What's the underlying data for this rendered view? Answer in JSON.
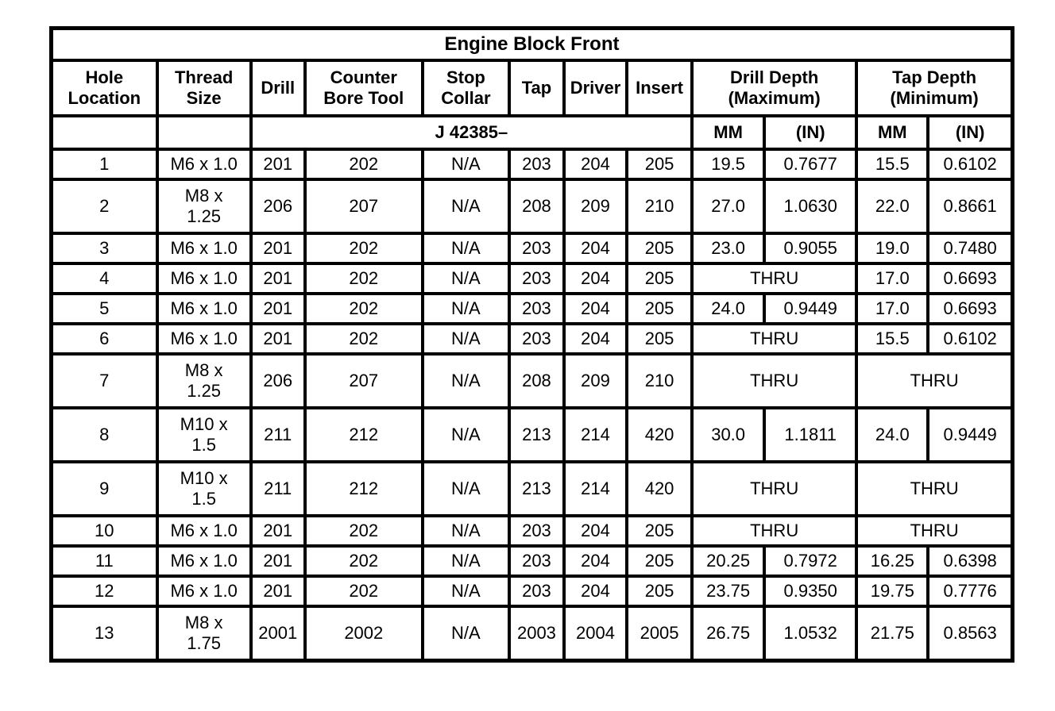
{
  "page": {
    "background_color": "#ffffff",
    "text_color": "#000000",
    "border_color": "#000000"
  },
  "table": {
    "title": "Engine Block Front",
    "header": {
      "hole_location": "Hole\nLocation",
      "thread_size": "Thread\nSize",
      "drill": "Drill",
      "counter_bore_tool": "Counter\nBore Tool",
      "stop_collar": "Stop\nCollar",
      "tap": "Tap",
      "driver": "Driver",
      "insert": "Insert",
      "drill_depth": "Drill Depth\n(Maximum)",
      "tap_depth": "Tap Depth\n(Minimum)"
    },
    "subheader": {
      "tool_prefix": "J 42385–",
      "drill_mm": "MM",
      "drill_in": "(IN)",
      "tap_mm": "MM",
      "tap_in": "(IN)"
    },
    "thru_label": "THRU",
    "rows": [
      {
        "hole": "1",
        "thread": "M6 x 1.0",
        "drill": "201",
        "counter_bore": "202",
        "stop_collar": "N/A",
        "tap": "203",
        "driver": "204",
        "insert": "205",
        "drill_depth": {
          "mm": "19.5",
          "in": "0.7677"
        },
        "tap_depth": {
          "mm": "15.5",
          "in": "0.6102"
        }
      },
      {
        "hole": "2",
        "thread": "M8 x\n1.25",
        "drill": "206",
        "counter_bore": "207",
        "stop_collar": "N/A",
        "tap": "208",
        "driver": "209",
        "insert": "210",
        "drill_depth": {
          "mm": "27.0",
          "in": "1.0630"
        },
        "tap_depth": {
          "mm": "22.0",
          "in": "0.8661"
        }
      },
      {
        "hole": "3",
        "thread": "M6 x 1.0",
        "drill": "201",
        "counter_bore": "202",
        "stop_collar": "N/A",
        "tap": "203",
        "driver": "204",
        "insert": "205",
        "drill_depth": {
          "mm": "23.0",
          "in": "0.9055"
        },
        "tap_depth": {
          "mm": "19.0",
          "in": "0.7480"
        }
      },
      {
        "hole": "4",
        "thread": "M6 x 1.0",
        "drill": "201",
        "counter_bore": "202",
        "stop_collar": "N/A",
        "tap": "203",
        "driver": "204",
        "insert": "205",
        "drill_depth": "THRU",
        "tap_depth": {
          "mm": "17.0",
          "in": "0.6693"
        }
      },
      {
        "hole": "5",
        "thread": "M6 x 1.0",
        "drill": "201",
        "counter_bore": "202",
        "stop_collar": "N/A",
        "tap": "203",
        "driver": "204",
        "insert": "205",
        "drill_depth": {
          "mm": "24.0",
          "in": "0.9449"
        },
        "tap_depth": {
          "mm": "17.0",
          "in": "0.6693"
        }
      },
      {
        "hole": "6",
        "thread": "M6 x 1.0",
        "drill": "201",
        "counter_bore": "202",
        "stop_collar": "N/A",
        "tap": "203",
        "driver": "204",
        "insert": "205",
        "drill_depth": "THRU",
        "tap_depth": {
          "mm": "15.5",
          "in": "0.6102"
        }
      },
      {
        "hole": "7",
        "thread": "M8 x\n1.25",
        "drill": "206",
        "counter_bore": "207",
        "stop_collar": "N/A",
        "tap": "208",
        "driver": "209",
        "insert": "210",
        "drill_depth": "THRU",
        "tap_depth": "THRU"
      },
      {
        "hole": "8",
        "thread": "M10 x\n1.5",
        "drill": "211",
        "counter_bore": "212",
        "stop_collar": "N/A",
        "tap": "213",
        "driver": "214",
        "insert": "420",
        "drill_depth": {
          "mm": "30.0",
          "in": "1.1811"
        },
        "tap_depth": {
          "mm": "24.0",
          "in": "0.9449"
        }
      },
      {
        "hole": "9",
        "thread": "M10 x\n1.5",
        "drill": "211",
        "counter_bore": "212",
        "stop_collar": "N/A",
        "tap": "213",
        "driver": "214",
        "insert": "420",
        "drill_depth": "THRU",
        "tap_depth": "THRU"
      },
      {
        "hole": "10",
        "thread": "M6 x 1.0",
        "drill": "201",
        "counter_bore": "202",
        "stop_collar": "N/A",
        "tap": "203",
        "driver": "204",
        "insert": "205",
        "drill_depth": "THRU",
        "tap_depth": "THRU"
      },
      {
        "hole": "11",
        "thread": "M6 x 1.0",
        "drill": "201",
        "counter_bore": "202",
        "stop_collar": "N/A",
        "tap": "203",
        "driver": "204",
        "insert": "205",
        "drill_depth": {
          "mm": "20.25",
          "in": "0.7972"
        },
        "tap_depth": {
          "mm": "16.25",
          "in": "0.6398"
        }
      },
      {
        "hole": "12",
        "thread": "M6 x 1.0",
        "drill": "201",
        "counter_bore": "202",
        "stop_collar": "N/A",
        "tap": "203",
        "driver": "204",
        "insert": "205",
        "drill_depth": {
          "mm": "23.75",
          "in": "0.9350"
        },
        "tap_depth": {
          "mm": "19.75",
          "in": "0.7776"
        }
      },
      {
        "hole": "13",
        "thread": "M8 x\n1.75",
        "drill": "2001",
        "counter_bore": "2002",
        "stop_collar": "N/A",
        "tap": "2003",
        "driver": "2004",
        "insert": "2005",
        "drill_depth": {
          "mm": "26.75",
          "in": "1.0532"
        },
        "tap_depth": {
          "mm": "21.75",
          "in": "0.8563"
        }
      }
    ]
  }
}
